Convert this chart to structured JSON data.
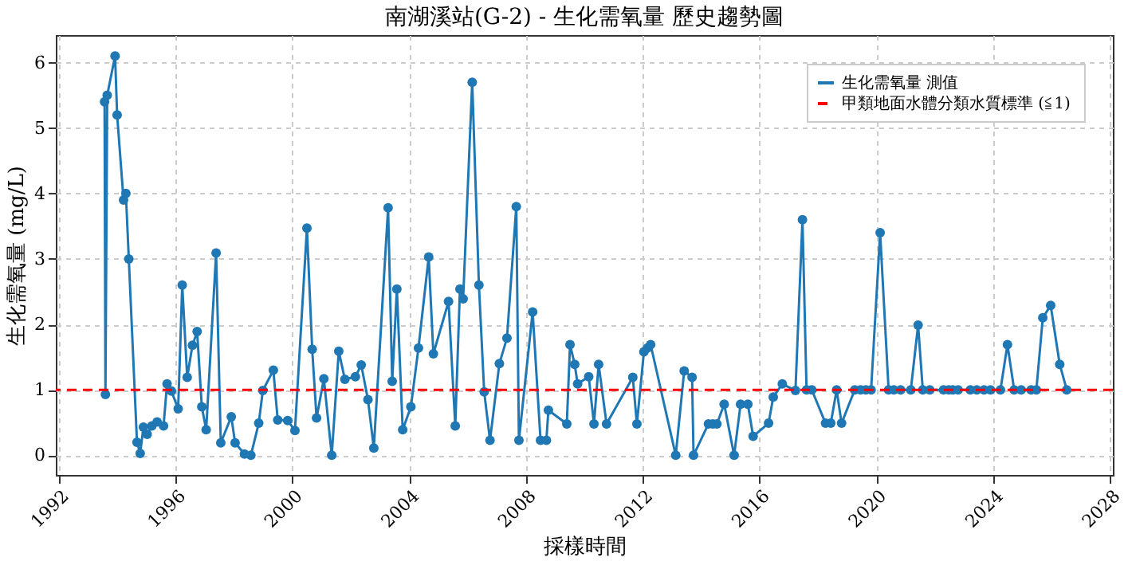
{
  "chart_data": {
    "type": "line",
    "title": "南湖溪站(G-2) - 生化需氧量 歷史趨勢圖",
    "xlabel": "採樣時間",
    "ylabel": "生化需氧量 (mg/L)",
    "x": [
      1993.57,
      1993.6,
      1993.66,
      1993.93,
      1994.0,
      1994.22,
      1994.3,
      1994.4,
      1994.68,
      1994.79,
      1994.9,
      1995.03,
      1995.19,
      1995.37,
      1995.59,
      1995.71,
      1995.86,
      1996.09,
      1996.23,
      1996.4,
      1996.58,
      1996.74,
      1996.9,
      1997.05,
      1997.39,
      1997.55,
      1997.91,
      1998.04,
      1998.36,
      1998.58,
      1998.85,
      1998.99,
      1999.35,
      1999.5,
      1999.84,
      2000.09,
      2000.5,
      2000.68,
      2000.83,
      2001.08,
      2001.35,
      2001.59,
      2001.8,
      2002.16,
      2002.36,
      2002.59,
      2002.79,
      2003.28,
      2003.42,
      2003.58,
      2003.78,
      2004.06,
      2004.32,
      2004.67,
      2004.83,
      2005.35,
      2005.58,
      2005.74,
      2005.85,
      2006.16,
      2006.39,
      2006.57,
      2006.77,
      2007.09,
      2007.35,
      2007.67,
      2007.76,
      2008.23,
      2008.5,
      2008.7,
      2008.77,
      2009.4,
      2009.51,
      2009.67,
      2009.77,
      2010.15,
      2010.33,
      2010.49,
      2010.76,
      2011.66,
      2011.8,
      2012.04,
      2012.16,
      2012.27,
      2013.13,
      2013.42,
      2013.69,
      2013.74,
      2014.25,
      2014.4,
      2014.54,
      2014.79,
      2015.13,
      2015.35,
      2015.6,
      2015.78,
      2016.31,
      2016.47,
      2016.78,
      2017.23,
      2017.47,
      2017.61,
      2017.79,
      2018.26,
      2018.44,
      2018.64,
      2018.81,
      2019.26,
      2019.46,
      2019.64,
      2019.82,
      2020.13,
      2020.42,
      2020.6,
      2020.83,
      2021.18,
      2021.43,
      2021.59,
      2021.83,
      2022.3,
      2022.48,
      2022.62,
      2022.8,
      2023.22,
      2023.44,
      2023.69,
      2023.91,
      2024.25,
      2024.49,
      2024.72,
      2024.96,
      2025.3,
      2025.48,
      2025.7,
      2025.97,
      2026.28,
      2026.52
    ],
    "series": [
      {
        "name": "生化需氧量 測值",
        "color": "#1f77b4",
        "values": [
          5.4,
          0.93,
          5.5,
          6.1,
          5.2,
          3.9,
          4.0,
          3.0,
          0.2,
          0.03,
          0.43,
          0.32,
          0.45,
          0.51,
          0.45,
          1.09,
          0.98,
          0.71,
          2.6,
          1.19,
          1.68,
          1.89,
          0.74,
          0.39,
          3.09,
          0.19,
          0.59,
          0.19,
          0.02,
          0.0,
          0.49,
          0.99,
          1.3,
          0.54,
          0.53,
          0.38,
          3.47,
          1.62,
          0.57,
          1.17,
          0.0,
          1.59,
          1.16,
          1.2,
          1.38,
          0.85,
          0.11,
          3.78,
          1.13,
          2.54,
          0.39,
          0.74,
          1.64,
          3.03,
          1.55,
          2.35,
          0.45,
          2.54,
          2.39,
          5.7,
          2.6,
          0.97,
          0.23,
          1.4,
          1.79,
          3.8,
          0.23,
          2.19,
          0.23,
          0.23,
          0.69,
          0.48,
          1.69,
          1.39,
          1.09,
          1.2,
          0.48,
          1.39,
          0.48,
          1.19,
          0.48,
          1.58,
          1.64,
          1.69,
          0.0,
          1.29,
          1.19,
          0.0,
          0.48,
          0.48,
          0.48,
          0.78,
          0.0,
          0.78,
          0.78,
          0.29,
          0.49,
          0.89,
          1.09,
          0.99,
          3.6,
          1.0,
          1.0,
          0.49,
          0.49,
          1.0,
          0.49,
          1.0,
          1.0,
          1.0,
          1.0,
          3.4,
          1.0,
          1.0,
          1.0,
          1.0,
          1.99,
          1.0,
          1.0,
          1.0,
          1.0,
          1.0,
          1.0,
          1.0,
          1.0,
          1.0,
          1.0,
          1.0,
          1.69,
          1.0,
          1.0,
          1.0,
          1.0,
          2.1,
          2.29,
          1.39,
          1.0
        ]
      }
    ],
    "ref_lines": [
      {
        "axis": "y",
        "value": 1,
        "label": "甲類地面水體分類水質標準 (≦1)",
        "color": "#ff0000",
        "line_style": "dashed"
      }
    ],
    "xlim": [
      1991.9,
      2028.1
    ],
    "xticks": [
      1992,
      1996,
      2000,
      2004,
      2008,
      2012,
      2016,
      2020,
      2024,
      2028
    ],
    "ylim": [
      -0.3,
      6.42
    ],
    "yticks": [
      0,
      1,
      2,
      3,
      4,
      5,
      6
    ],
    "grid": true,
    "legend": "top right",
    "marker": "circle",
    "line_style": "solid"
  }
}
